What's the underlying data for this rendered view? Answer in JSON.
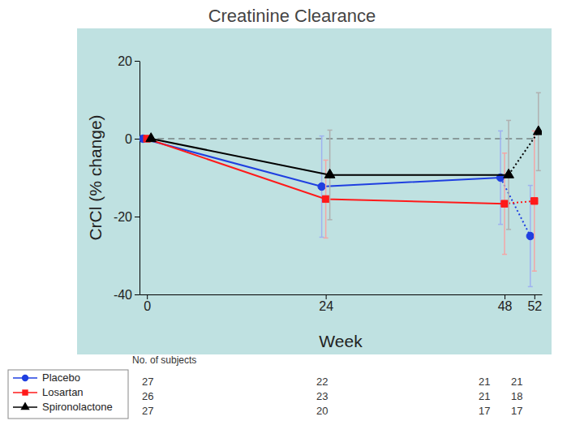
{
  "chart_data": {
    "type": "line",
    "title": "Creatinine Clearance",
    "x_label": "Week",
    "y_label": "CrCl (% change)",
    "x": [
      0,
      24,
      48,
      52
    ],
    "xlim": [
      -1,
      53
    ],
    "xticks": [
      0,
      24,
      48,
      52
    ],
    "ylim": [
      -40,
      20
    ],
    "yticks": [
      -40,
      -20,
      0,
      20
    ],
    "reference_line": 0,
    "legend": "bottom-left",
    "series": [
      {
        "name": "Placebo",
        "color": "#1f3fe0",
        "marker": "circle",
        "values": [
          0,
          -12.3,
          -10,
          -25
        ],
        "errors": [
          0,
          13,
          12,
          13
        ]
      },
      {
        "name": "Losartan",
        "color": "#ff1a1a",
        "marker": "square",
        "values": [
          0,
          -15.5,
          -16.7,
          -16
        ],
        "errors": [
          0,
          10,
          13,
          18
        ]
      },
      {
        "name": "Spironolactone",
        "color": "#000000",
        "marker": "triangle",
        "values": [
          0,
          -9.3,
          -9.3,
          1.8
        ],
        "errors": [
          0,
          11.5,
          14,
          10
        ]
      }
    ],
    "subjects": {
      "label": "No. of subjects",
      "rows": [
        [
          27,
          22,
          21,
          21
        ],
        [
          26,
          23,
          21,
          18
        ],
        [
          27,
          20,
          17,
          17
        ]
      ]
    }
  }
}
